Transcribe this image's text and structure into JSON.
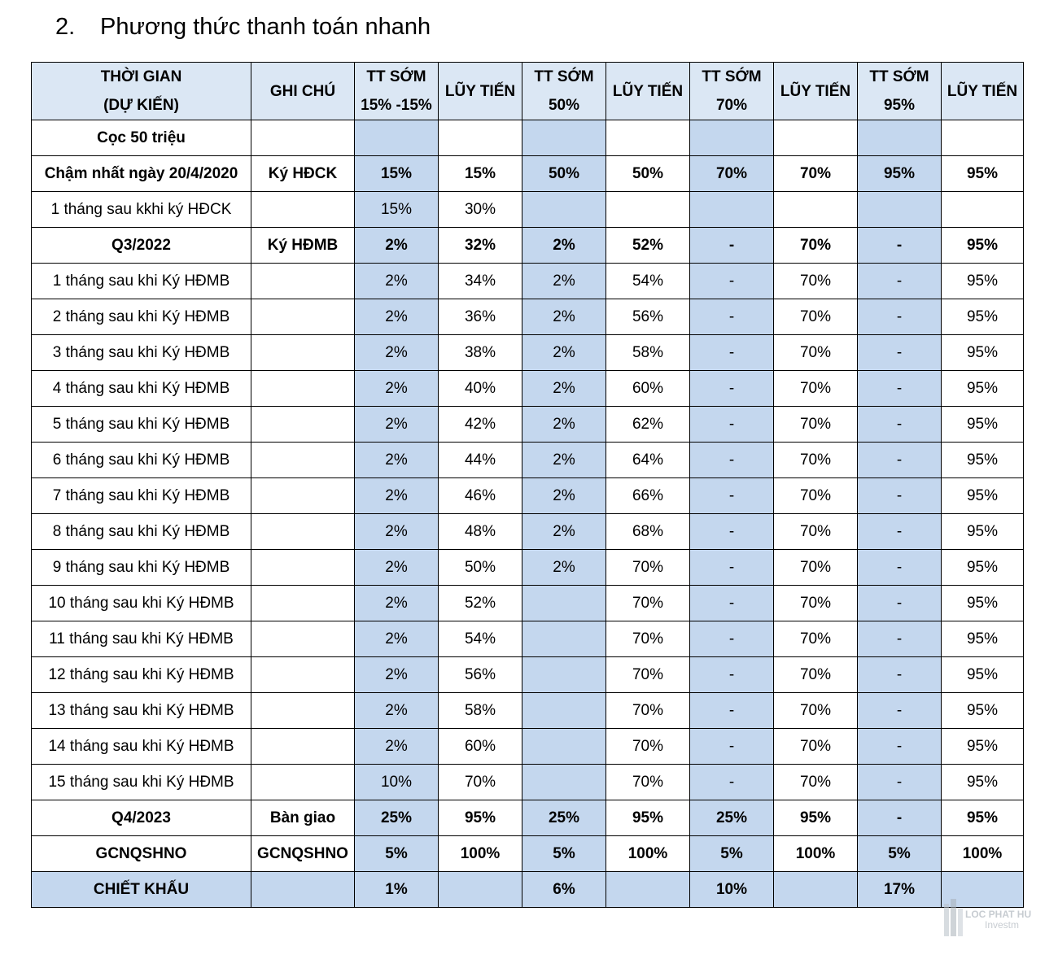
{
  "heading": {
    "number": "2.",
    "title": "Phương thức thanh toán nhanh"
  },
  "table": {
    "headers": [
      [
        "THỜI GIAN",
        "(DỰ KIẾN)"
      ],
      [
        "GHI CHÚ"
      ],
      [
        "TT SỚM",
        "15% -15%"
      ],
      [
        "LŨY TIẾN"
      ],
      [
        "TT SỚM",
        "50%"
      ],
      [
        "LŨY TIẾN"
      ],
      [
        "TT SỚM",
        "70%"
      ],
      [
        "LŨY TIẾN"
      ],
      [
        "TT SỚM",
        "95%"
      ],
      [
        "LŨY TIẾN"
      ]
    ],
    "rows": [
      {
        "bold": true,
        "cells": [
          "Cọc 50 triệu",
          "",
          "",
          "",
          "",
          "",
          "",
          "",
          "",
          ""
        ]
      },
      {
        "bold": true,
        "cells": [
          "Chậm nhất ngày 20/4/2020",
          "Ký HĐCK",
          "15%",
          "15%",
          "50%",
          "50%",
          "70%",
          "70%",
          "95%",
          "95%"
        ]
      },
      {
        "bold": false,
        "cells": [
          "1 tháng sau kkhi ký HĐCK",
          "",
          "15%",
          "30%",
          "",
          "",
          "",
          "",
          "",
          ""
        ]
      },
      {
        "bold": true,
        "cells": [
          "Q3/2022",
          "Ký HĐMB",
          "2%",
          "32%",
          "2%",
          "52%",
          "-",
          "70%",
          "-",
          "95%"
        ]
      },
      {
        "bold": false,
        "cells": [
          "1 tháng sau khi Ký HĐMB",
          "",
          "2%",
          "34%",
          "2%",
          "54%",
          "-",
          "70%",
          "-",
          "95%"
        ]
      },
      {
        "bold": false,
        "cells": [
          "2 tháng sau khi Ký HĐMB",
          "",
          "2%",
          "36%",
          "2%",
          "56%",
          "-",
          "70%",
          "-",
          "95%"
        ]
      },
      {
        "bold": false,
        "cells": [
          "3 tháng sau khi Ký HĐMB",
          "",
          "2%",
          "38%",
          "2%",
          "58%",
          "-",
          "70%",
          "-",
          "95%"
        ]
      },
      {
        "bold": false,
        "cells": [
          "4 tháng sau khi Ký HĐMB",
          "",
          "2%",
          "40%",
          "2%",
          "60%",
          "-",
          "70%",
          "-",
          "95%"
        ]
      },
      {
        "bold": false,
        "cells": [
          "5 tháng sau khi Ký HĐMB",
          "",
          "2%",
          "42%",
          "2%",
          "62%",
          "-",
          "70%",
          "-",
          "95%"
        ]
      },
      {
        "bold": false,
        "cells": [
          "6 tháng sau khi Ký HĐMB",
          "",
          "2%",
          "44%",
          "2%",
          "64%",
          "-",
          "70%",
          "-",
          "95%"
        ]
      },
      {
        "bold": false,
        "cells": [
          "7 tháng sau khi Ký HĐMB",
          "",
          "2%",
          "46%",
          "2%",
          "66%",
          "-",
          "70%",
          "-",
          "95%"
        ]
      },
      {
        "bold": false,
        "cells": [
          "8 tháng sau khi Ký HĐMB",
          "",
          "2%",
          "48%",
          "2%",
          "68%",
          "-",
          "70%",
          "-",
          "95%"
        ]
      },
      {
        "bold": false,
        "cells": [
          "9 tháng sau khi Ký HĐMB",
          "",
          "2%",
          "50%",
          "2%",
          "70%",
          "-",
          "70%",
          "-",
          "95%"
        ]
      },
      {
        "bold": false,
        "cells": [
          "10 tháng sau khi Ký HĐMB",
          "",
          "2%",
          "52%",
          "",
          "70%",
          "-",
          "70%",
          "-",
          "95%"
        ]
      },
      {
        "bold": false,
        "cells": [
          "11 tháng sau khi Ký HĐMB",
          "",
          "2%",
          "54%",
          "",
          "70%",
          "-",
          "70%",
          "-",
          "95%"
        ]
      },
      {
        "bold": false,
        "cells": [
          "12 tháng sau khi Ký HĐMB",
          "",
          "2%",
          "56%",
          "",
          "70%",
          "-",
          "70%",
          "-",
          "95%"
        ]
      },
      {
        "bold": false,
        "cells": [
          "13 tháng sau khi Ký HĐMB",
          "",
          "2%",
          "58%",
          "",
          "70%",
          "-",
          "70%",
          "-",
          "95%"
        ]
      },
      {
        "bold": false,
        "cells": [
          "14 tháng sau khi Ký HĐMB",
          "",
          "2%",
          "60%",
          "",
          "70%",
          "-",
          "70%",
          "-",
          "95%"
        ]
      },
      {
        "bold": false,
        "cells": [
          "15 tháng sau khi Ký HĐMB",
          "",
          "10%",
          "70%",
          "",
          "70%",
          "-",
          "70%",
          "-",
          "95%"
        ]
      },
      {
        "bold": true,
        "cells": [
          "Q4/2023",
          "Bàn giao",
          "25%",
          "95%",
          "25%",
          "95%",
          "25%",
          "95%",
          "-",
          "95%"
        ]
      },
      {
        "bold": true,
        "cells": [
          "GCNQSHNO",
          "GCNQSHNO",
          "5%",
          "100%",
          "5%",
          "100%",
          "5%",
          "100%",
          "5%",
          "100%"
        ]
      }
    ],
    "footer": [
      "CHIẾT KHẤU",
      "",
      "1%",
      "",
      "6%",
      "",
      "10%",
      "",
      "17%",
      ""
    ]
  },
  "watermark": {
    "line1": "LOC PHAT HU",
    "line2": "Investm"
  }
}
